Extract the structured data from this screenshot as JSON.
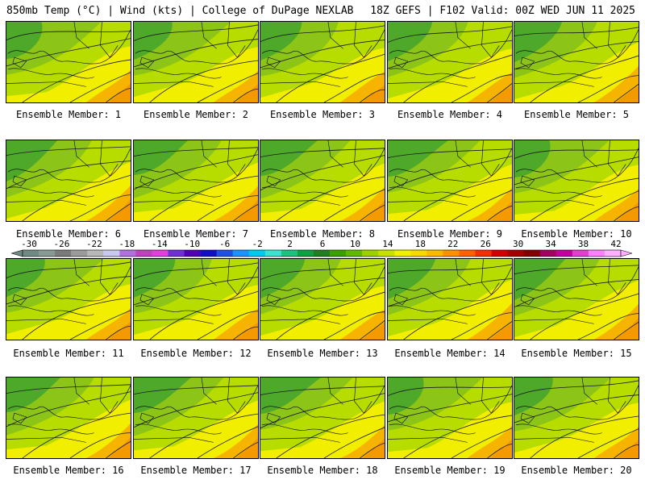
{
  "header": {
    "left_title": "850mb Temp (°C) | Wind (kts) | College of DuPage NEXLAB",
    "right_title": "18Z GEFS | F102 Valid: 00Z WED JUN 11 2025"
  },
  "panels": [
    {
      "label": "Ensemble Member: 1"
    },
    {
      "label": "Ensemble Member: 2"
    },
    {
      "label": "Ensemble Member: 3"
    },
    {
      "label": "Ensemble Member: 4"
    },
    {
      "label": "Ensemble Member: 5"
    },
    {
      "label": "Ensemble Member: 6"
    },
    {
      "label": "Ensemble Member: 7"
    },
    {
      "label": "Ensemble Member: 8"
    },
    {
      "label": "Ensemble Member: 9"
    },
    {
      "label": "Ensemble Member: 10"
    },
    {
      "label": "Ensemble Member: 11"
    },
    {
      "label": "Ensemble Member: 12"
    },
    {
      "label": "Ensemble Member: 13"
    },
    {
      "label": "Ensemble Member: 14"
    },
    {
      "label": "Ensemble Member: 15"
    },
    {
      "label": "Ensemble Member: 16"
    },
    {
      "label": "Ensemble Member: 17"
    },
    {
      "label": "Ensemble Member: 18"
    },
    {
      "label": "Ensemble Member: 19"
    },
    {
      "label": "Ensemble Member: 20"
    }
  ],
  "colorbar": {
    "ticks": [
      "-30",
      "-26",
      "-22",
      "-18",
      "-14",
      "-10",
      "-6",
      "-2",
      "2",
      "6",
      "10",
      "14",
      "18",
      "22",
      "26",
      "30",
      "34",
      "38",
      "42"
    ],
    "colors": [
      "#6e8a82",
      "#889a94",
      "#7a7a7a",
      "#9a9a9a",
      "#b8b8b8",
      "#c8c8f0",
      "#b070e0",
      "#c040c0",
      "#e040e0",
      "#7030d0",
      "#5000b0",
      "#1010c0",
      "#2050e0",
      "#1e90ff",
      "#00c8f0",
      "#40e0d0",
      "#20c080",
      "#10a040",
      "#208020",
      "#3aa000",
      "#60b800",
      "#9ed000",
      "#c8e000",
      "#f0f000",
      "#f8d800",
      "#ffb800",
      "#ff9000",
      "#ff6000",
      "#f03000",
      "#d00000",
      "#a00000",
      "#800000",
      "#a00060",
      "#c000a0",
      "#e040d0",
      "#ff80ff",
      "#ffb0ff"
    ]
  }
}
